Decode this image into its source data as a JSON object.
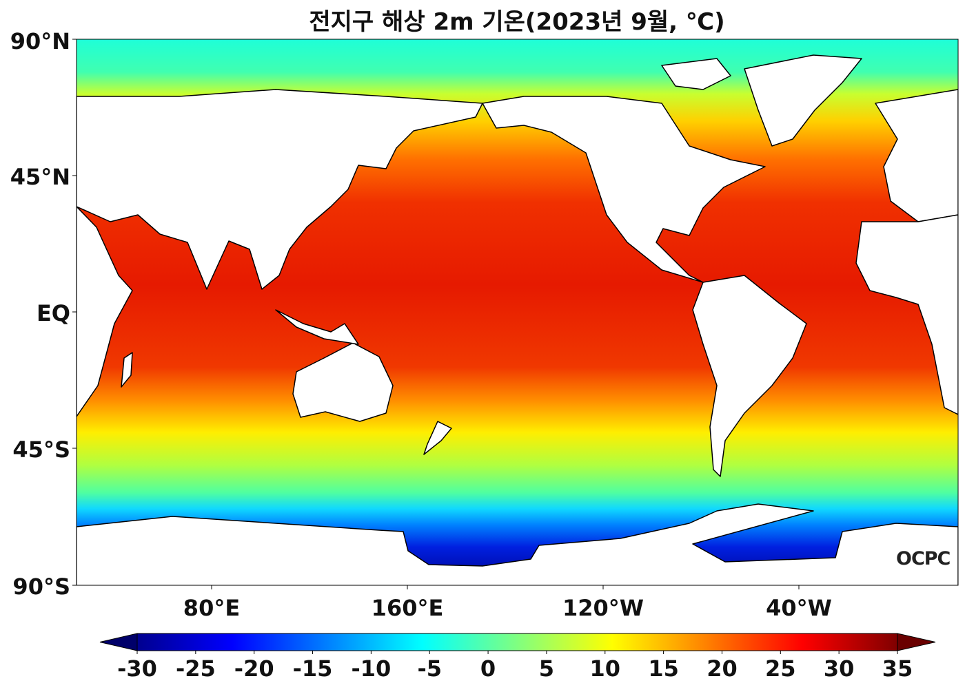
{
  "title": "전지구 해상 2m 기온(2023년 9월, ℃)",
  "lat_labels": [
    "90°N",
    "45°N",
    "EQ",
    "45°S",
    "90°S"
  ],
  "lon_labels": [
    "80°E",
    "160°E",
    "120°W",
    "40°W"
  ],
  "colorbar": {
    "min": -30,
    "max": 35,
    "extend": "both",
    "ticks": [
      "-30",
      "-25",
      "-20",
      "-15",
      "-10",
      "-5",
      "0",
      "5",
      "10",
      "15",
      "20",
      "25",
      "30",
      "35"
    ],
    "colormap": "jet"
  },
  "logo": "OCPC"
}
